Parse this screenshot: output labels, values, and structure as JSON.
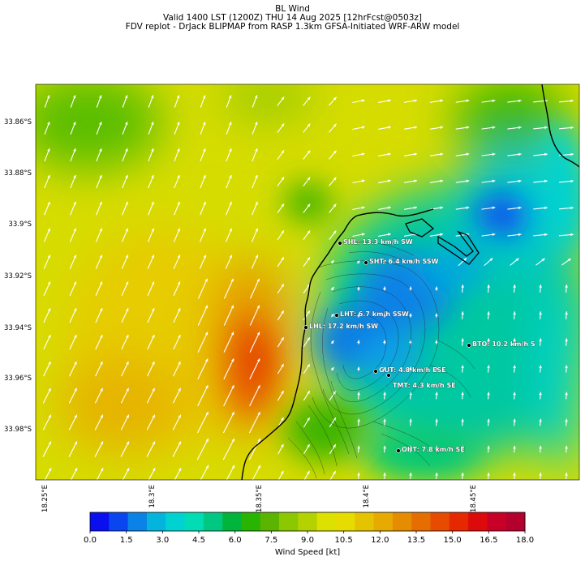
{
  "header": {
    "title": "BL Wind",
    "valid_line": "Valid 1400 LST (1200Z) THU 14 Aug 2025 [12hrFcst@0503z]",
    "model_line": "FDV replot - DrJack BLIPMAP from RASP 1.3km GFSA-Initiated WRF-ARW model"
  },
  "axes": {
    "lat_ticks": [
      "33.86°S",
      "33.88°S",
      "33.9°S",
      "33.92°S",
      "33.94°S",
      "33.96°S",
      "33.98°S"
    ],
    "lon_ticks": [
      "18.25°E",
      "18.3°E",
      "18.35°E",
      "18.4°E",
      "18.45°E"
    ]
  },
  "stations": [
    {
      "code": "SHL",
      "label": "SHL: 13.3 km/h SW"
    },
    {
      "code": "SHT",
      "label": "SHT: 6.4 km/h SSW"
    },
    {
      "code": "LHT",
      "label": "LHT: 6.7 km/h SSW"
    },
    {
      "code": "LHL",
      "label": "LHL: 17.2 km/h SW"
    },
    {
      "code": "BTO",
      "label": "BTO: 10.2 km/h S"
    },
    {
      "code": "GUT",
      "label": "GUT: 4.8 km/h ESE"
    },
    {
      "code": "TMT",
      "label": "TMT: 4.3 km/h SE"
    },
    {
      "code": "OHT",
      "label": "OHT: 7.8 km/h SE"
    }
  ],
  "colorbar": {
    "label": "Wind Speed [kt]",
    "ticks": [
      "0.0",
      "1.5",
      "3.0",
      "4.5",
      "6.0",
      "7.5",
      "9.0",
      "10.5",
      "12.0",
      "13.5",
      "15.0",
      "16.5",
      "18.0"
    ],
    "colors": [
      "#0a0ff0",
      "#0a46f0",
      "#0a82e6",
      "#05b4dc",
      "#00d2d2",
      "#00dcb4",
      "#00c882",
      "#00b43c",
      "#28b400",
      "#5ab400",
      "#8cc800",
      "#b4d200",
      "#dce100",
      "#e6dc00",
      "#e6c300",
      "#e6aa00",
      "#e68c00",
      "#e66e00",
      "#e64b00",
      "#e62800",
      "#dc0a0a",
      "#c80028",
      "#b4002d"
    ]
  },
  "wind_arrows_note": ""
}
